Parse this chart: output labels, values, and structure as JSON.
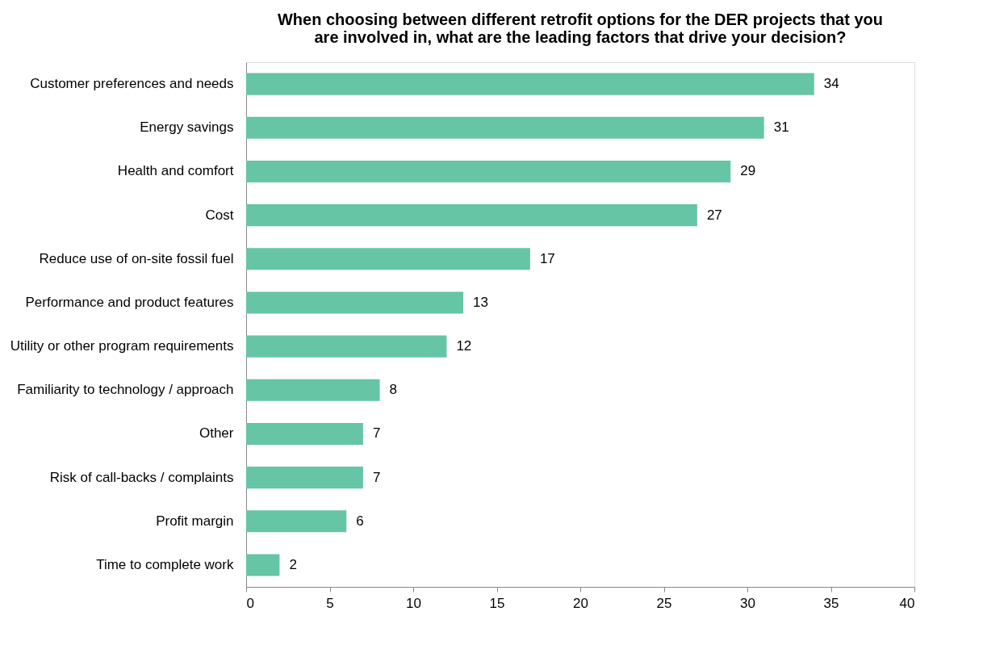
{
  "chart_data": {
    "type": "bar",
    "orientation": "horizontal",
    "title": "When choosing between different retrofit options for the DER projects that you are involved in, what are the leading factors that drive your decision?",
    "categories": [
      "Customer preferences and needs",
      "Energy savings",
      "Health and comfort",
      "Cost",
      "Reduce use of on-site fossil fuel",
      "Performance and product features",
      "Utility or other program requirements",
      "Familiarity to technology / approach",
      "Other",
      "Risk of call-backs / complaints",
      "Profit margin",
      "Time to complete work"
    ],
    "values": [
      34,
      31,
      29,
      27,
      17,
      13,
      12,
      8,
      7,
      7,
      6,
      2
    ],
    "color": "#66c5a5",
    "xlim": [
      0,
      40
    ],
    "xticks": [
      0,
      5,
      10,
      15,
      20,
      25,
      30,
      35,
      40
    ],
    "grid": false,
    "data_labels": true
  }
}
